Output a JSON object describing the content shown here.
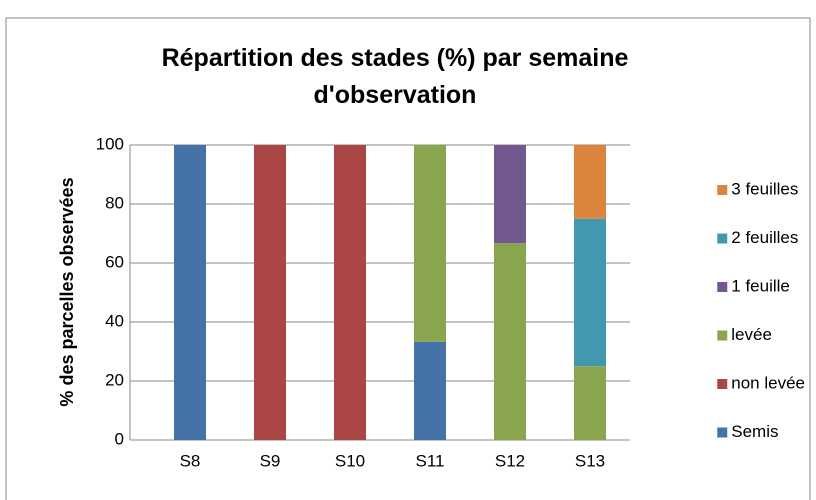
{
  "chart_data": {
    "type": "stacked_bar",
    "title": "Répartition des stades (%) par semaine d'observation",
    "y_label": "% des parcelles observées",
    "categories": [
      "S8",
      "S9",
      "S10",
      "S11",
      "S12",
      "S13"
    ],
    "series": [
      {
        "name": "Semis",
        "color": "#4572a7",
        "values": [
          100,
          0,
          0,
          33.3,
          0,
          0
        ]
      },
      {
        "name": "non levée",
        "color": "#aa4643",
        "values": [
          0,
          100,
          100,
          0,
          0,
          0
        ]
      },
      {
        "name": "levée",
        "color": "#89a54e",
        "values": [
          0,
          0,
          0,
          66.7,
          66.7,
          25
        ]
      },
      {
        "name": "1 feuille",
        "color": "#71588f",
        "values": [
          0,
          0,
          0,
          0,
          33.3,
          0
        ]
      },
      {
        "name": "2 feuilles",
        "color": "#4198af",
        "values": [
          0,
          0,
          0,
          0,
          0,
          50
        ]
      },
      {
        "name": "3 feuilles",
        "color": "#db843d",
        "values": [
          0,
          0,
          0,
          0,
          0,
          25
        ]
      }
    ],
    "ylim": [
      0,
      100
    ],
    "yticks": [
      0,
      20,
      40,
      60,
      80,
      100
    ],
    "grid": true,
    "legend": "right"
  }
}
